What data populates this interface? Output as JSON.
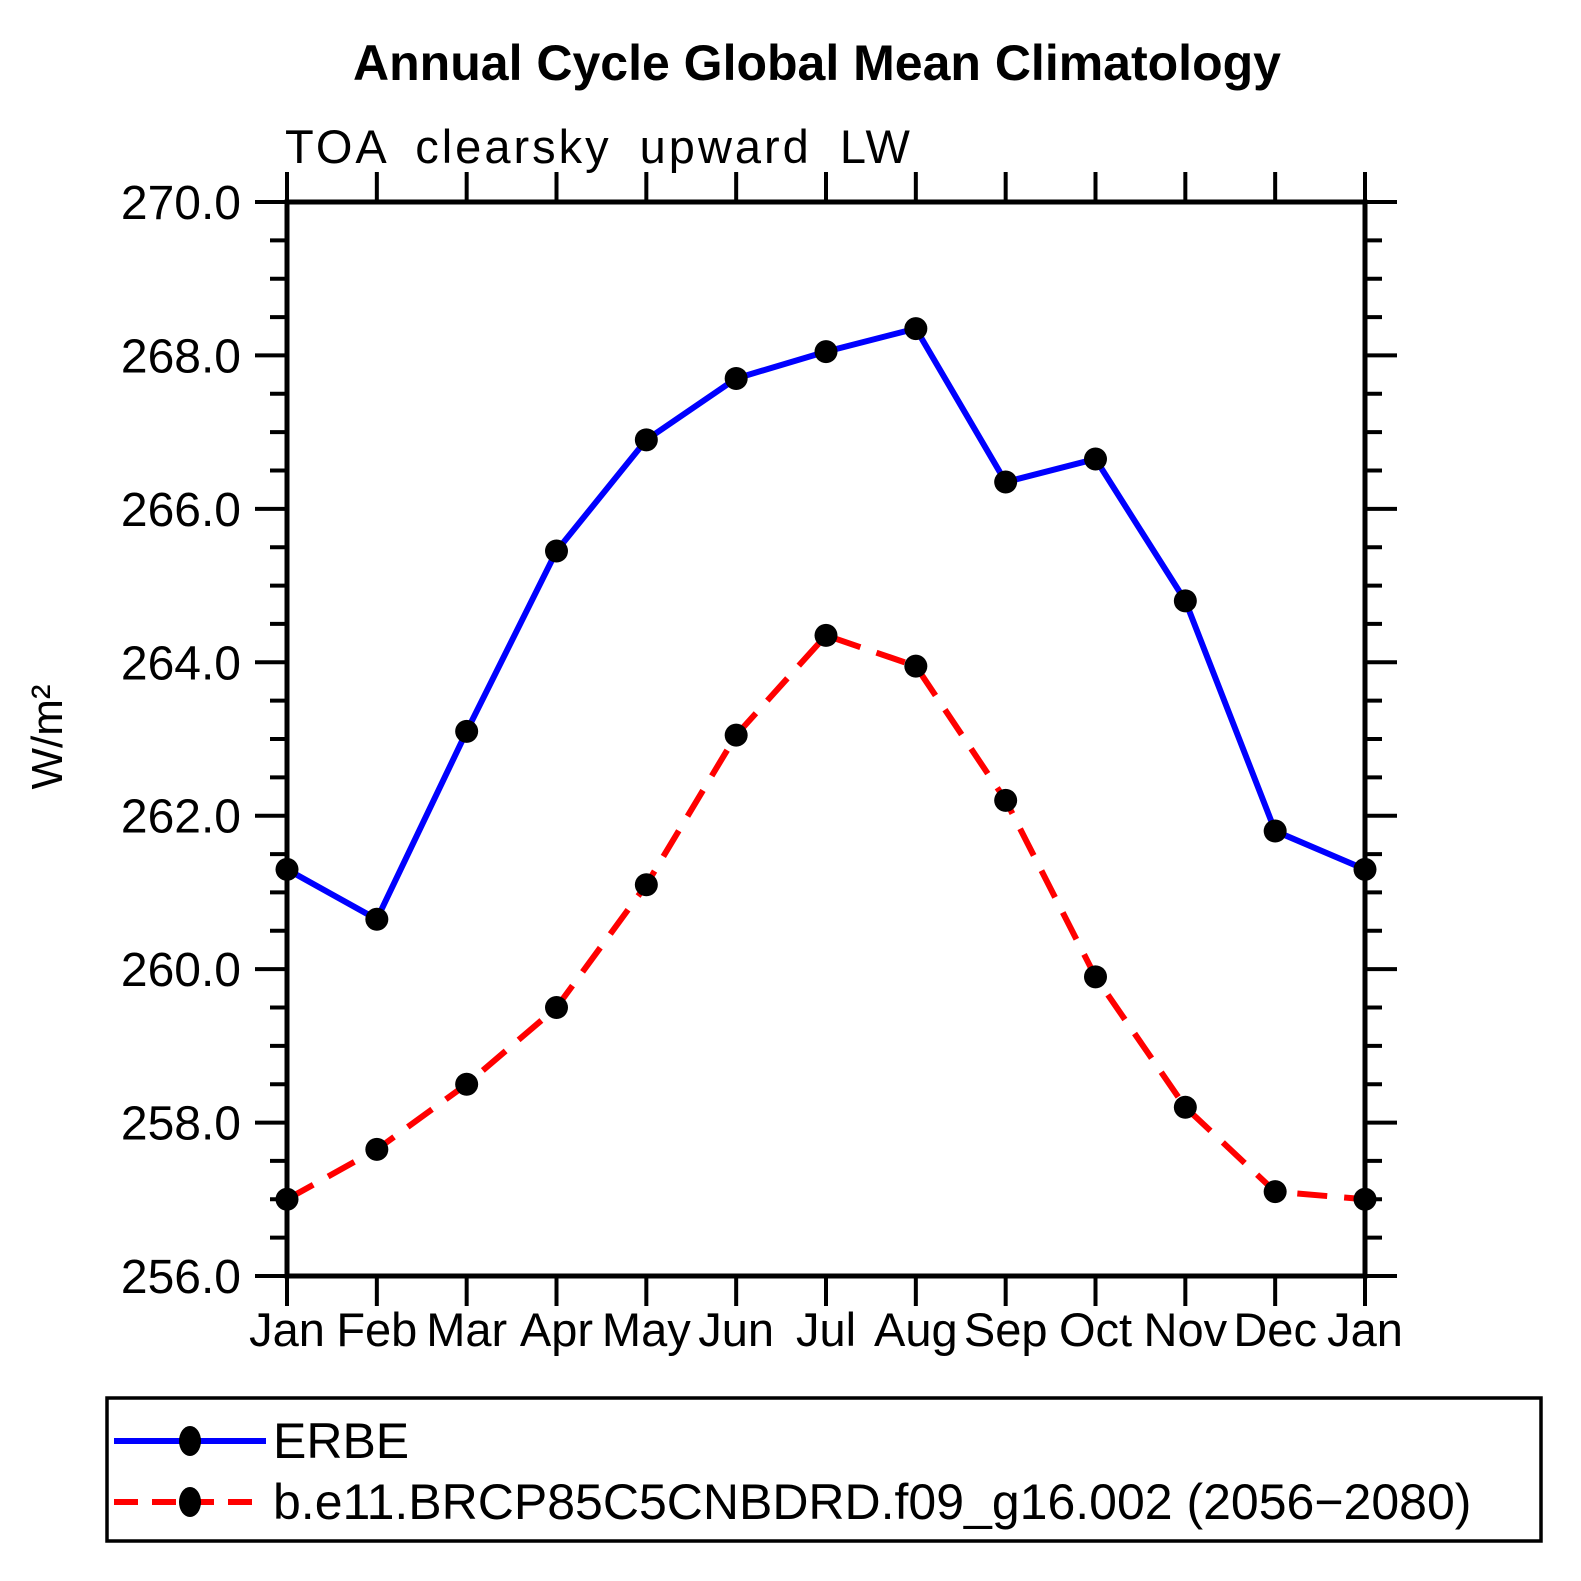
{
  "title": "Annual Cycle Global Mean Climatology",
  "subtitle": "TOA clearsky upward LW",
  "ylabel": "W/m²",
  "chart_data": {
    "type": "line",
    "title": "Annual Cycle Global Mean Climatology",
    "subtitle": "TOA clearsky upward LW",
    "xlabel": "",
    "ylabel": "W/m²",
    "categories": [
      "Jan",
      "Feb",
      "Mar",
      "Apr",
      "May",
      "Jun",
      "Jul",
      "Aug",
      "Sep",
      "Oct",
      "Nov",
      "Dec",
      "Jan"
    ],
    "series": [
      {
        "name": "ERBE",
        "color": "#0000ff",
        "line_style": "solid",
        "marker": "filled-circle",
        "marker_color": "#000000",
        "values": [
          261.3,
          260.65,
          263.1,
          265.45,
          266.9,
          267.7,
          268.05,
          268.35,
          266.35,
          266.65,
          264.8,
          261.8,
          261.3
        ]
      },
      {
        "name": "b.e11.BRCP85C5CNBDRD.f09_g16.002 (2056−2080)",
        "color": "#ff0000",
        "line_style": "dashed",
        "marker": "filled-circle",
        "marker_color": "#000000",
        "values": [
          257.0,
          257.65,
          258.5,
          259.5,
          261.1,
          263.05,
          264.35,
          263.95,
          262.2,
          259.9,
          258.2,
          257.1,
          257.0
        ]
      }
    ],
    "ylim": [
      256.0,
      270.0
    ],
    "ytick_step": 2.0,
    "ytick_labels": [
      "256.0",
      "258.0",
      "260.0",
      "262.0",
      "264.0",
      "266.0",
      "268.0",
      "270.0"
    ],
    "yminor_step": 0.5,
    "grid": false,
    "frame": "box-with-outward-ticks",
    "legend_position": "bottom-box",
    "axis_color": "#000000",
    "text_color": "#000000",
    "background_color": "#ffffff"
  }
}
